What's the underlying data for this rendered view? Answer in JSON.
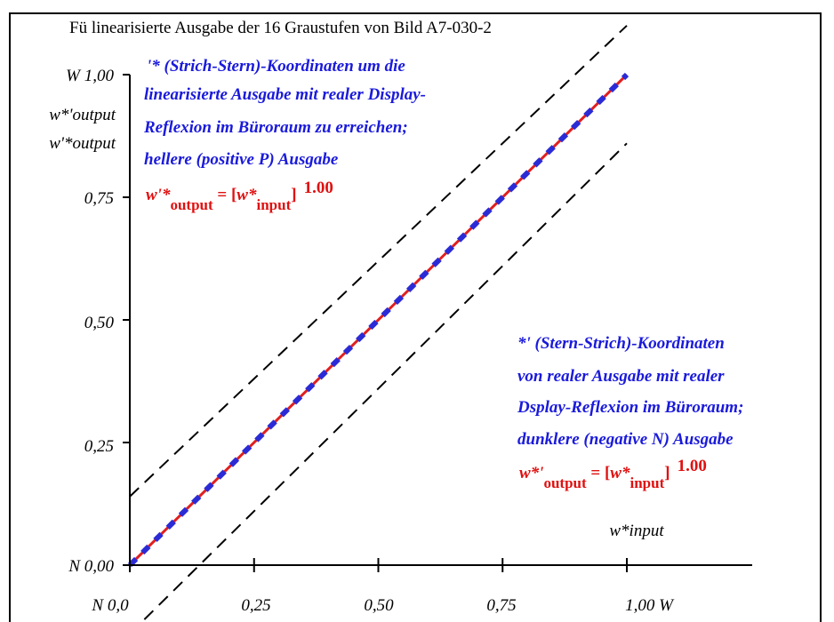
{
  "title": "Fü linearisierte Ausgabe der 16 Graustufen von Bild A7-030-2",
  "y_axis": {
    "top_label": "W 1,00",
    "side_label_1": "w*'output",
    "side_label_2": "w'*output",
    "ticks": [
      "N 0,00",
      "0,25",
      "0,50",
      "0,75",
      "W 1,00"
    ]
  },
  "x_axis": {
    "label": "w*input",
    "ticks": [
      "N  0,0",
      "0,25",
      "0,50",
      "0,75",
      "1,00  W"
    ]
  },
  "annotation_top": {
    "lines": [
      "'* (Strich-Stern)-Koordinaten um die",
      "linearisierte Ausgabe mit realer Display-",
      "Reflexion im Büroraum zu erreichen;",
      "hellere (positive P) Ausgabe"
    ],
    "formula": {
      "lhs": "w'*",
      "lhs_sub": "output",
      "eq": " = [",
      "var": "w*",
      "var_sub": "input",
      "close": "]",
      "exp": "1.00"
    }
  },
  "annotation_bottom": {
    "lines": [
      "*' (Stern-Strich)-Koordinaten",
      "von realer Ausgabe mit realer",
      "Dsplay-Reflexion im Büroraum;",
      "dunklere (negative N) Ausgabe"
    ],
    "formula": {
      "lhs": "w*'",
      "lhs_sub": "output",
      "eq": " = [",
      "var": "w*",
      "var_sub": "input",
      "close": "]",
      "exp": "1.00"
    }
  },
  "colors": {
    "text_blue": "#1a1adb",
    "text_red": "#e01010",
    "line_red": "#e02020",
    "line_blue": "#2b2bd6",
    "axis": "#000000"
  },
  "chart_data": {
    "type": "line",
    "xlim": [
      0,
      1
    ],
    "ylim": [
      0,
      1
    ],
    "x_ticks": [
      0,
      0.25,
      0.5,
      0.75,
      1.0
    ],
    "y_ticks": [
      0,
      0.25,
      0.5,
      0.75,
      1.0
    ],
    "series": [
      {
        "style": "solid-red",
        "x": [
          0,
          1
        ],
        "y": [
          0,
          1
        ]
      },
      {
        "style": "dashed-blue",
        "x": [
          0,
          1
        ],
        "y": [
          0,
          1
        ]
      },
      {
        "style": "dashed-black",
        "x": [
          0,
          1
        ],
        "y": [
          0.14,
          1.1
        ]
      },
      {
        "style": "dashed-black",
        "x": [
          0,
          1
        ],
        "y": [
          -0.14,
          0.86
        ]
      }
    ]
  }
}
